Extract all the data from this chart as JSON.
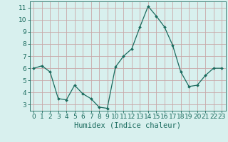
{
  "x": [
    0,
    1,
    2,
    3,
    4,
    5,
    6,
    7,
    8,
    9,
    10,
    11,
    12,
    13,
    14,
    15,
    16,
    17,
    18,
    19,
    20,
    21,
    22,
    23
  ],
  "y": [
    6.0,
    6.2,
    5.7,
    3.5,
    3.4,
    4.6,
    3.9,
    3.5,
    2.8,
    2.7,
    6.1,
    7.0,
    7.6,
    9.4,
    11.1,
    10.3,
    9.4,
    7.9,
    5.7,
    4.5,
    4.6,
    5.4,
    6.0,
    6.0
  ],
  "line_color": "#1a6b5e",
  "marker": "D",
  "marker_size": 2.0,
  "bg_color": "#d8f0ee",
  "grid_color": "#c8a8a8",
  "xlabel": "Humidex (Indice chaleur)",
  "ylabel_ticks": [
    3,
    4,
    5,
    6,
    7,
    8,
    9,
    10,
    11
  ],
  "xlim": [
    -0.5,
    23.5
  ],
  "ylim": [
    2.5,
    11.5
  ],
  "xticks": [
    0,
    1,
    2,
    3,
    4,
    5,
    6,
    7,
    8,
    9,
    10,
    11,
    12,
    13,
    14,
    15,
    16,
    17,
    18,
    19,
    20,
    21,
    22,
    23
  ],
  "xtick_labels": [
    "0",
    "1",
    "2",
    "3",
    "4",
    "5",
    "6",
    "7",
    "8",
    "9",
    "10",
    "11",
    "12",
    "13",
    "14",
    "15",
    "16",
    "17",
    "18",
    "19",
    "20",
    "21",
    "22",
    "23"
  ],
  "axis_color": "#1a6b5e",
  "tick_color": "#1a6b5e",
  "label_color": "#1a6b5e",
  "xlabel_fontsize": 7.5,
  "tick_fontsize": 6.5,
  "line_width": 0.9
}
